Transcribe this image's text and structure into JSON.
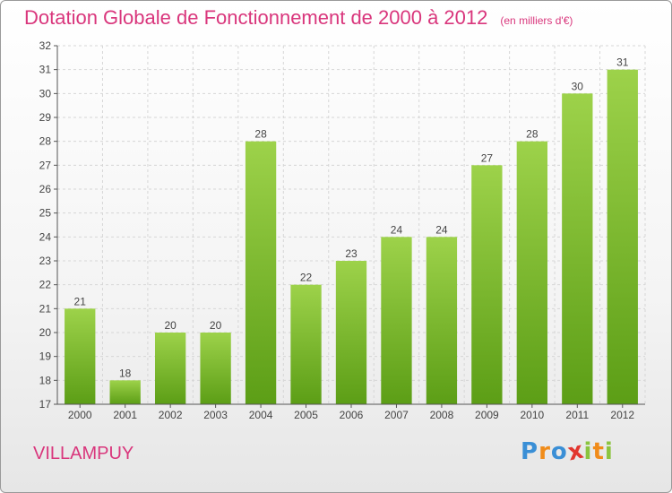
{
  "chart_data": {
    "type": "bar",
    "title": "Dotation Globale de Fonctionnement de 2000 à 2012",
    "subtitle": "(en milliers d'€)",
    "categories": [
      "2000",
      "2001",
      "2002",
      "2003",
      "2004",
      "2005",
      "2006",
      "2007",
      "2008",
      "2009",
      "2010",
      "2011",
      "2012"
    ],
    "values": [
      21,
      18,
      20,
      20,
      28,
      22,
      23,
      24,
      24,
      27,
      28,
      30,
      31
    ],
    "ylim": [
      17,
      32
    ],
    "yticks": [
      17,
      18,
      19,
      20,
      21,
      22,
      23,
      24,
      25,
      26,
      27,
      28,
      29,
      30,
      31,
      32
    ],
    "grid": true,
    "bar_color_top": "#9dd24a",
    "bar_color_bottom": "#5c9e16"
  },
  "footer": {
    "town": "VILLAMPUY",
    "logo_letters": [
      "P",
      "r",
      "o",
      "x",
      "i",
      "t",
      "i"
    ],
    "logo_colors": [
      "#3a8fd6",
      "#f08c1a",
      "#3a8fd6",
      "#e2362f",
      "#8bc43f",
      "#f08c1a",
      "#8bc43f"
    ]
  }
}
